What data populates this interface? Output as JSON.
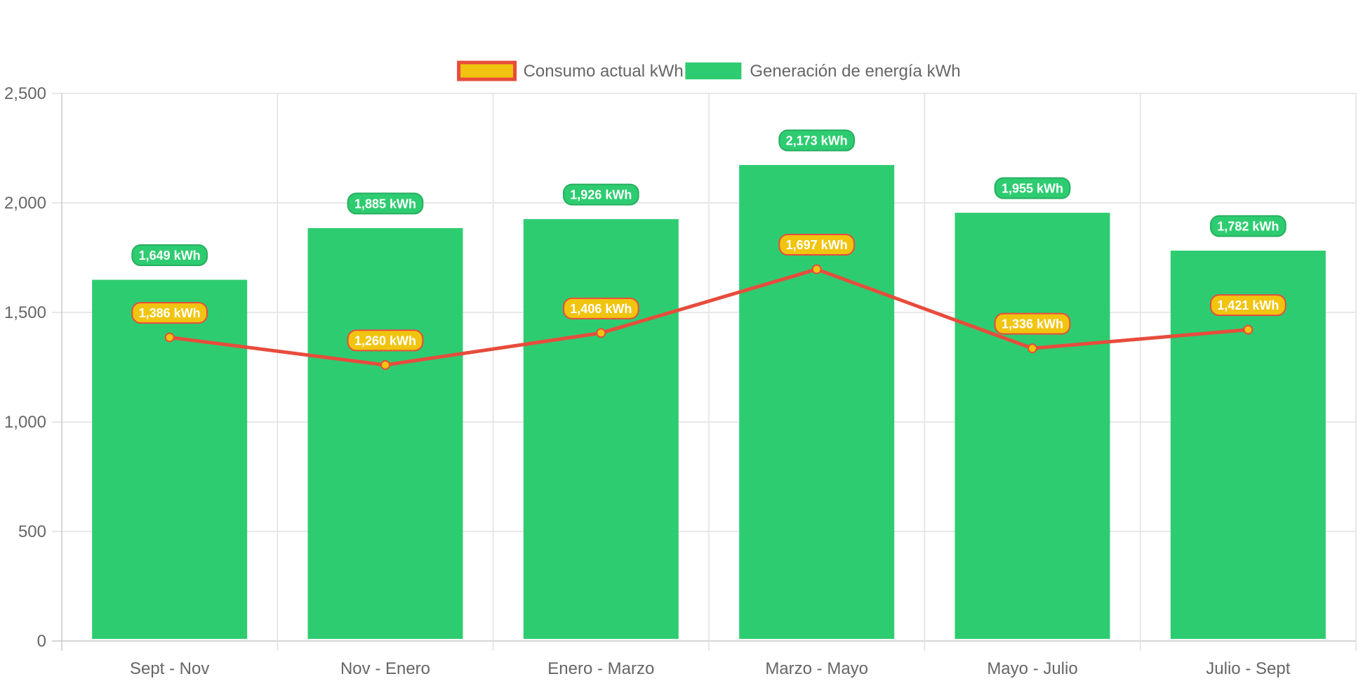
{
  "chart_data": {
    "type": "bar",
    "categories": [
      "Sept - Nov",
      "Nov - Enero",
      "Enero - Marzo",
      "Marzo - Mayo",
      "Mayo - Julio",
      "Julio - Sept"
    ],
    "series": [
      {
        "name": "Consumo actual kWh",
        "kind": "line",
        "values": [
          1386,
          1260,
          1406,
          1697,
          1336,
          1421
        ],
        "data_labels": [
          "1,386 kWh",
          "1,260 kWh",
          "1,406 kWh",
          "1,697 kWh",
          "1,336 kWh",
          "1,421 kWh"
        ],
        "color": "#e74c3c",
        "fill": "#f1c40f"
      },
      {
        "name": "Generación de energía kWh",
        "kind": "bar",
        "values": [
          1649,
          1885,
          1926,
          2173,
          1955,
          1782
        ],
        "data_labels": [
          "1,649 kWh",
          "1,885 kWh",
          "1,926 kWh",
          "2,173 kWh",
          "1,955 kWh",
          "1,782 kWh"
        ],
        "color": "#2ecc71",
        "border": "#27ae60"
      }
    ],
    "y_ticks": [
      "0",
      "500",
      "1,000",
      "1,500",
      "2,000",
      "2,500"
    ],
    "ylim": [
      0,
      2500
    ],
    "grid": true,
    "legend_position": "top"
  }
}
